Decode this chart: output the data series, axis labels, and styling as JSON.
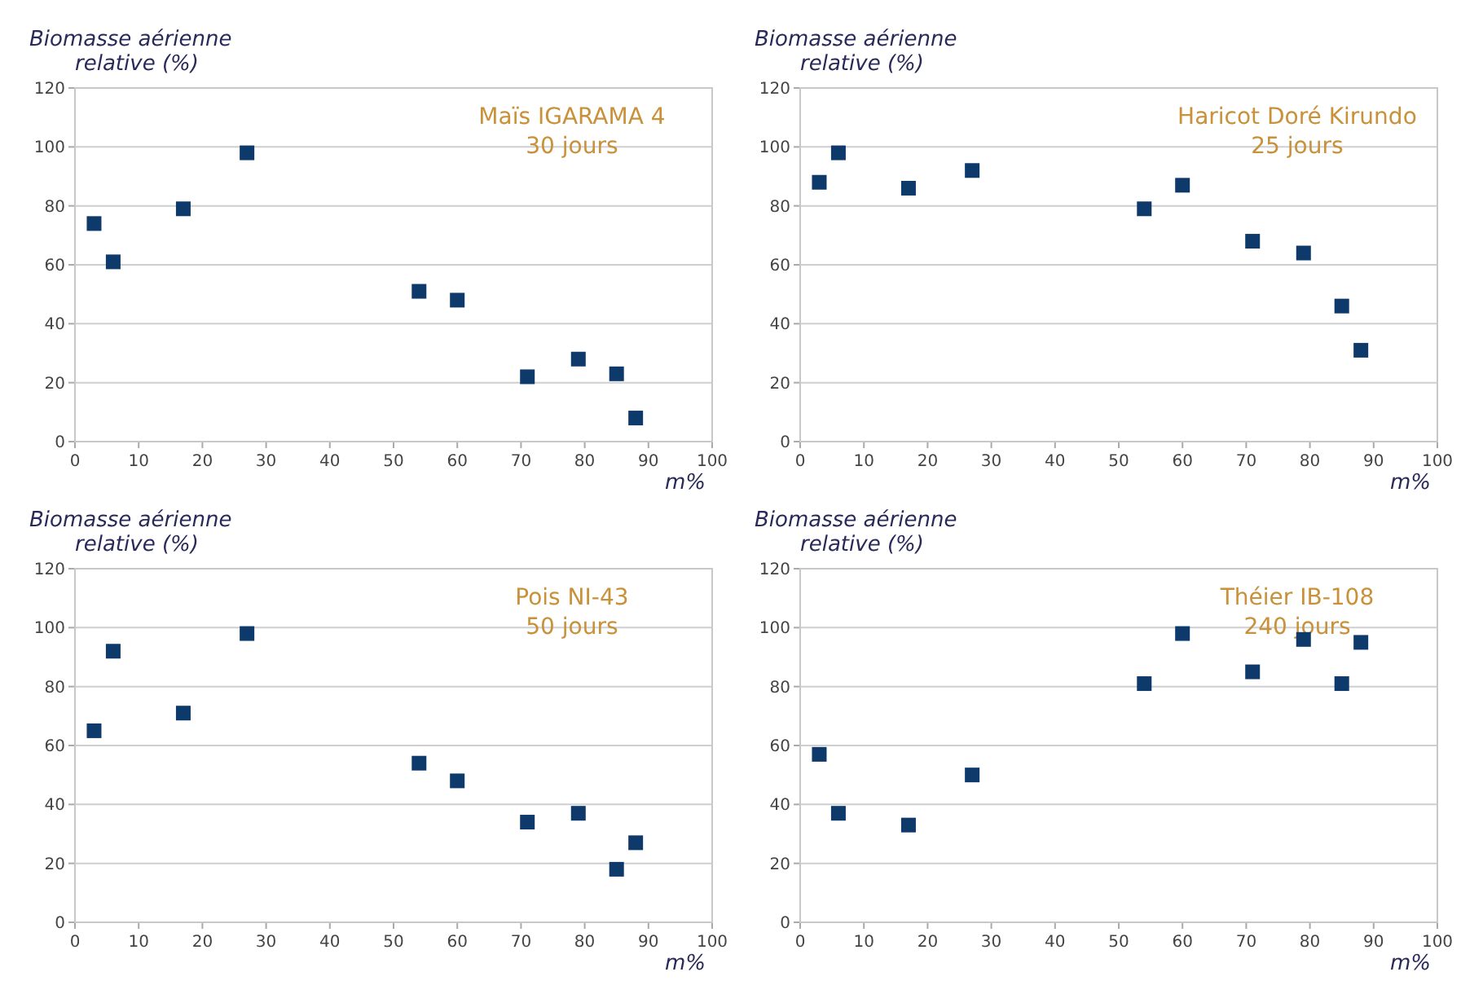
{
  "chart_data": [
    {
      "type": "scatter",
      "title": "Maïs IGARAMA 4",
      "subtitle": "30 jours",
      "xlabel": "m%",
      "ylabel": "Biomasse aérienne relative (%)",
      "x": [
        3,
        6,
        17,
        27,
        54,
        60,
        71,
        79,
        85,
        88
      ],
      "series": [
        {
          "color": "#0d3a6b",
          "values": [
            74,
            61,
            79,
            98,
            51,
            48,
            22,
            28,
            23,
            8
          ]
        }
      ],
      "xlim": [
        0,
        100
      ],
      "xticks": [
        0,
        10,
        20,
        30,
        40,
        50,
        60,
        70,
        80,
        90,
        100
      ],
      "ylim": [
        0,
        120
      ],
      "yticks": [
        0,
        20,
        40,
        60,
        80,
        100,
        120
      ],
      "grid": "y",
      "marker": "square"
    },
    {
      "type": "scatter",
      "title": "Haricot Doré Kirundo",
      "subtitle": "25 jours",
      "xlabel": "m%",
      "ylabel": "Biomasse aérienne relative (%)",
      "x": [
        3,
        6,
        17,
        27,
        54,
        60,
        71,
        79,
        85,
        88
      ],
      "series": [
        {
          "color": "#0d3a6b",
          "values": [
            88,
            98,
            86,
            92,
            79,
            87,
            68,
            64,
            46,
            31
          ]
        }
      ],
      "xlim": [
        0,
        100
      ],
      "xticks": [
        0,
        10,
        20,
        30,
        40,
        50,
        60,
        70,
        80,
        90,
        100
      ],
      "ylim": [
        0,
        120
      ],
      "yticks": [
        0,
        20,
        40,
        60,
        80,
        100,
        120
      ],
      "grid": "y",
      "marker": "square"
    },
    {
      "type": "scatter",
      "title": "Pois NI-43",
      "subtitle": "50 jours",
      "xlabel": "m%",
      "ylabel": "Biomasse aérienne relative (%)",
      "x": [
        3,
        6,
        17,
        27,
        54,
        60,
        71,
        79,
        85,
        88
      ],
      "series": [
        {
          "color": "#0d3a6b",
          "values": [
            65,
            92,
            71,
            98,
            54,
            48,
            34,
            37,
            18,
            27
          ]
        }
      ],
      "xlim": [
        0,
        100
      ],
      "xticks": [
        0,
        10,
        20,
        30,
        40,
        50,
        60,
        70,
        80,
        90,
        100
      ],
      "ylim": [
        0,
        120
      ],
      "yticks": [
        0,
        20,
        40,
        60,
        80,
        100,
        120
      ],
      "grid": "y",
      "marker": "square"
    },
    {
      "type": "scatter",
      "title": "Théier IB-108",
      "subtitle": "240 jours",
      "xlabel": "m%",
      "ylabel": "Biomasse aérienne relative (%)",
      "x": [
        3,
        6,
        17,
        27,
        54,
        60,
        71,
        79,
        85,
        88
      ],
      "series": [
        {
          "color": "#0d3a6b",
          "values": [
            57,
            37,
            33,
            50,
            81,
            98,
            85,
            96,
            81,
            95
          ]
        }
      ],
      "xlim": [
        0,
        100
      ],
      "xticks": [
        0,
        10,
        20,
        30,
        40,
        50,
        60,
        70,
        80,
        90,
        100
      ],
      "ylim": [
        0,
        120
      ],
      "yticks": [
        0,
        20,
        40,
        60,
        80,
        100,
        120
      ],
      "grid": "y",
      "marker": "square"
    }
  ]
}
